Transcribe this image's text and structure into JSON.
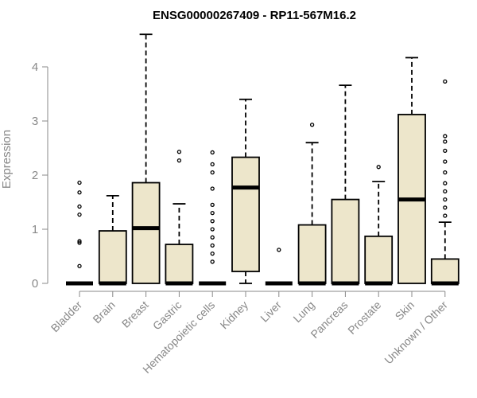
{
  "chart_data": {
    "type": "boxplot",
    "title": "ENSG00000267409 - RP11-567M16.2",
    "xlabel": "",
    "ylabel": "Expression",
    "ylim": [
      0,
      4.5
    ],
    "yticks": [
      0,
      1,
      2,
      3,
      4
    ],
    "categories": [
      "Bladder",
      "Brain",
      "Breast",
      "Gastric",
      "Hematopoietic cells",
      "Kidney",
      "Liver",
      "Lung",
      "Pancreas",
      "Prostate",
      "Skin",
      "Unknown / Other"
    ],
    "colors": {
      "box_fill": "#ede6cb",
      "box_stroke": "#000000",
      "axis": "#888888"
    },
    "boxes": [
      {
        "category": "Bladder",
        "min": 0,
        "q1": 0,
        "median": 0,
        "q3": 0,
        "max": 0,
        "outliers": [
          0.32,
          0.75,
          0.78,
          1.27,
          1.42,
          1.68,
          1.86
        ]
      },
      {
        "category": "Brain",
        "min": 0,
        "q1": 0,
        "median": 0,
        "q3": 0.97,
        "max": 1.62,
        "outliers": []
      },
      {
        "category": "Breast",
        "min": 0,
        "q1": 0,
        "median": 1.02,
        "q3": 1.86,
        "max": 4.6,
        "outliers": []
      },
      {
        "category": "Gastric",
        "min": 0,
        "q1": 0,
        "median": 0,
        "q3": 0.72,
        "max": 1.47,
        "outliers": [
          2.27,
          2.43
        ]
      },
      {
        "category": "Hematopoietic cells",
        "min": 0,
        "q1": 0,
        "median": 0,
        "q3": 0,
        "max": 0,
        "outliers": [
          0.4,
          0.55,
          0.7,
          0.85,
          1.0,
          1.15,
          1.3,
          1.45,
          1.75,
          2.05,
          2.2,
          2.42
        ]
      },
      {
        "category": "Kidney",
        "min": 0,
        "q1": 0.22,
        "median": 1.77,
        "q3": 2.33,
        "max": 3.4,
        "outliers": []
      },
      {
        "category": "Liver",
        "min": 0,
        "q1": 0,
        "median": 0,
        "q3": 0,
        "max": 0,
        "outliers": [
          0.62
        ]
      },
      {
        "category": "Lung",
        "min": 0,
        "q1": 0,
        "median": 0,
        "q3": 1.08,
        "max": 2.6,
        "outliers": [
          2.93
        ]
      },
      {
        "category": "Pancreas",
        "min": 0,
        "q1": 0,
        "median": 0,
        "q3": 1.55,
        "max": 3.66,
        "outliers": []
      },
      {
        "category": "Prostate",
        "min": 0,
        "q1": 0,
        "median": 0,
        "q3": 0.87,
        "max": 1.88,
        "outliers": [
          2.15
        ]
      },
      {
        "category": "Skin",
        "min": 0,
        "q1": 0,
        "median": 1.55,
        "q3": 3.12,
        "max": 4.17,
        "outliers": []
      },
      {
        "category": "Unknown / Other",
        "min": 0,
        "q1": 0,
        "median": 0,
        "q3": 0.45,
        "max": 1.13,
        "outliers": [
          1.25,
          1.4,
          1.55,
          1.7,
          1.85,
          2.05,
          2.25,
          2.45,
          2.62,
          2.72,
          3.73
        ]
      }
    ]
  }
}
